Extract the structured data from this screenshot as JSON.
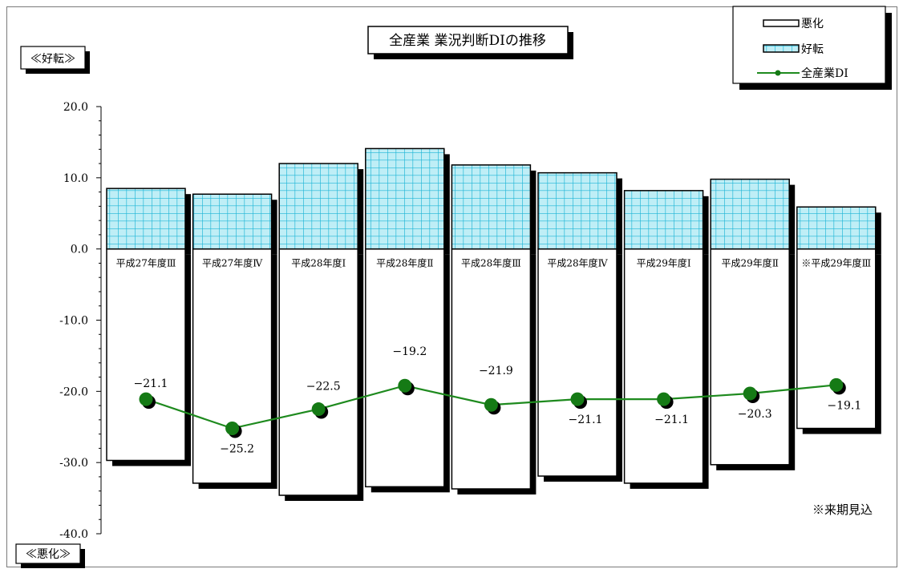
{
  "chart_data": {
    "type": "bar",
    "title": "全産業 業況判断DIの推移",
    "categories": [
      "平成27年度Ⅲ",
      "平成27年度Ⅳ",
      "平成28年度Ⅰ",
      "平成28年度Ⅱ",
      "平成28年度Ⅲ",
      "平成28年度Ⅳ",
      "平成29年度Ⅰ",
      "平成29年度Ⅱ",
      "※平成29年度Ⅲ"
    ],
    "series": [
      {
        "name": "悪化",
        "kind": "bar",
        "values": [
          -29.7,
          -32.9,
          -34.6,
          -33.4,
          -33.7,
          -31.9,
          -32.9,
          -30.3,
          -25.2
        ]
      },
      {
        "name": "好転",
        "kind": "bar",
        "values": [
          8.5,
          7.7,
          12.0,
          14.1,
          11.8,
          10.7,
          8.2,
          9.8,
          5.9
        ]
      },
      {
        "name": "全産業DI",
        "kind": "line",
        "values": [
          -21.1,
          -25.2,
          -22.5,
          -19.2,
          -21.9,
          -21.1,
          -21.1,
          -20.3,
          -19.1
        ]
      }
    ],
    "data_labels": [
      "−21.1",
      "−25.2",
      "−22.5",
      "−19.2",
      "−21.9",
      "−21.1",
      "−21.1",
      "−20.3",
      "−19.1"
    ],
    "ylim": [
      -40,
      20
    ],
    "y_ticks": [
      "20.0",
      "10.0",
      "0.0",
      "-10.0",
      "-20.0",
      "-30.0",
      "-40.0"
    ],
    "y_top_label": "≪好転≫",
    "y_bottom_label": "≪悪化≫",
    "note": "※来期見込",
    "legend_position": "top-right",
    "grid": false,
    "colors": {
      "good_fill": "#bfeef6",
      "good_grid": "#1db5d6",
      "bad_fill": "#ffffff",
      "line": "#1e8a1e",
      "marker": "#157a15"
    }
  }
}
